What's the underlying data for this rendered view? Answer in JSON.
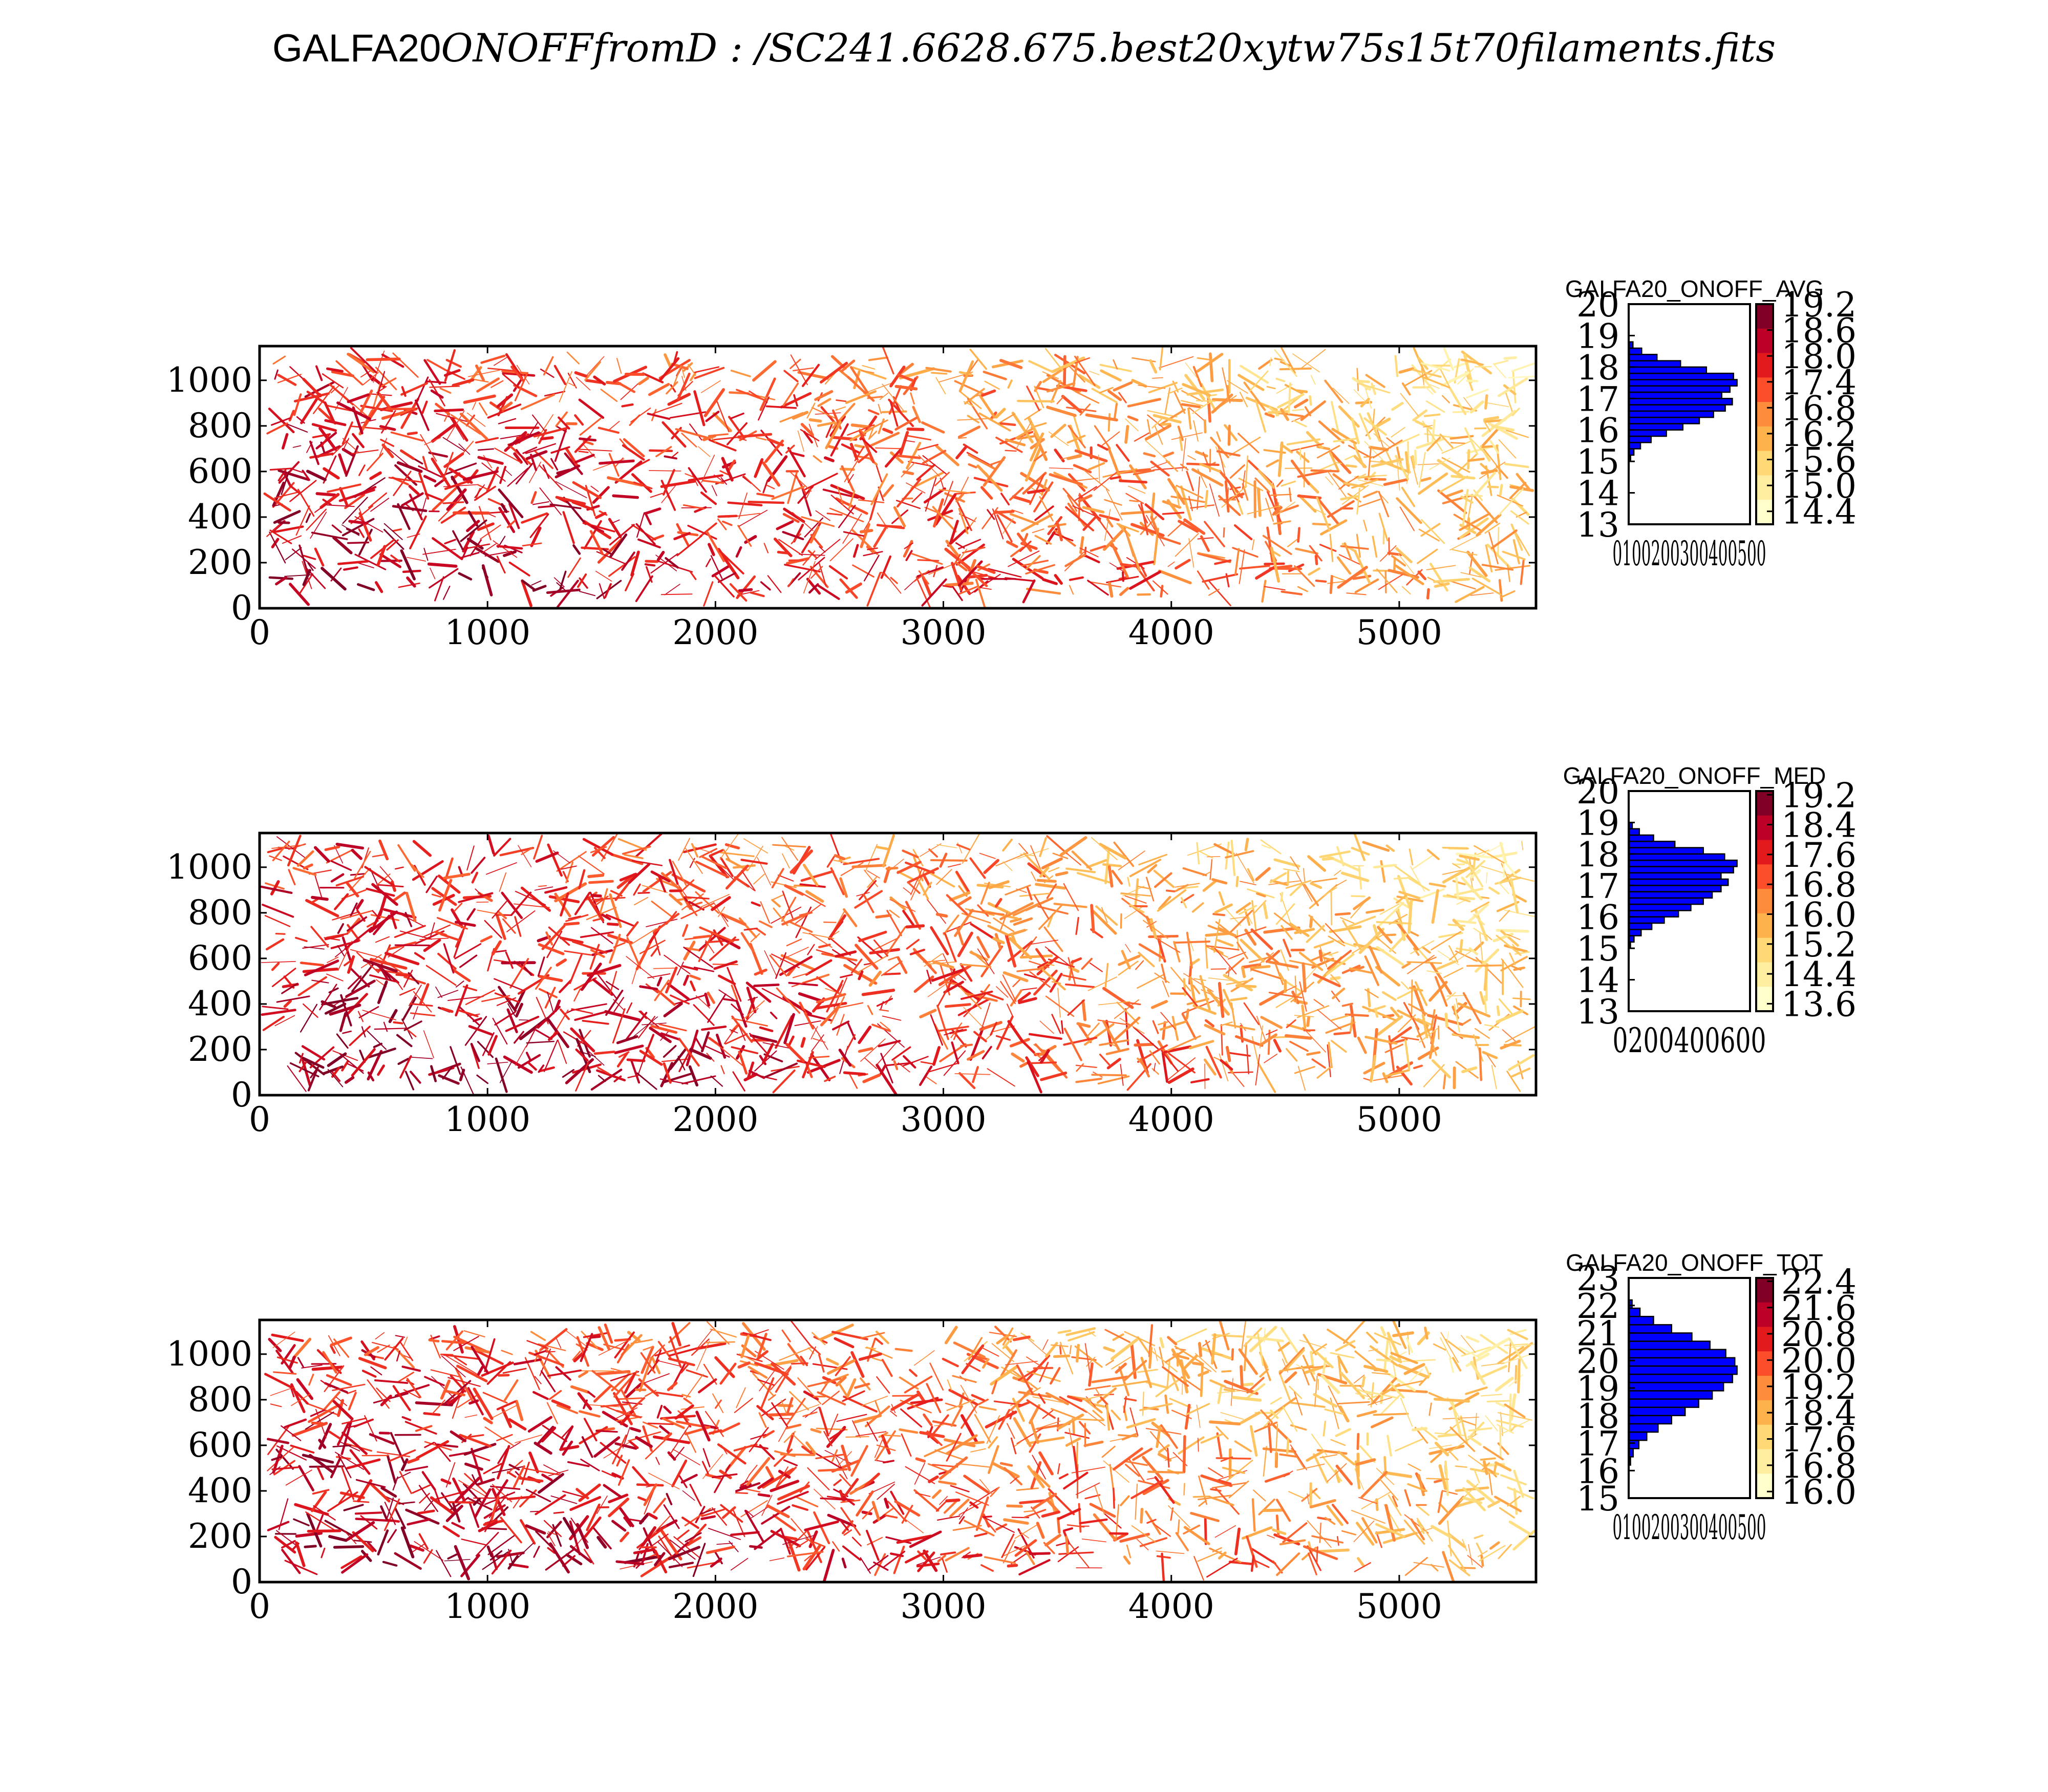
{
  "figure": {
    "title_main": "GALFA20",
    "title_rest": "ONOFFfromD : /SC241.6628.675.best20xytw75s15t70filaments.fits"
  },
  "colormap": [
    "#ffffcc",
    "#ffeda0",
    "#fed976",
    "#feb24c",
    "#fd8d3c",
    "#fc4e2a",
    "#e31a1c",
    "#bd0026",
    "#800026"
  ],
  "hist_fill_color": "#0000ff",
  "chart_data": [
    {
      "type": "heatmap",
      "xlim": [
        0,
        5600
      ],
      "ylim": [
        0,
        1150
      ],
      "x_ticks": [
        "0",
        "1000",
        "2000",
        "3000",
        "4000",
        "5000"
      ],
      "y_ticks": [
        "0",
        "200",
        "400",
        "600",
        "800",
        "1000"
      ],
      "value_range": [
        14.1,
        19.2
      ],
      "colormap": "YlOrRd",
      "hist": {
        "title": "GALFA20_ONOFF_AVG",
        "type": "histogram",
        "orientation": "horizontal",
        "ylim": [
          13,
          20
        ],
        "y_ticks": [
          "13",
          "14",
          "15",
          "16",
          "17",
          "18",
          "19",
          "20"
        ],
        "x_tick_text": "0100200300400500",
        "bins": [
          15.0,
          15.2,
          15.4,
          15.6,
          15.8,
          16.0,
          16.2,
          16.4,
          16.6,
          16.8,
          17.0,
          17.2,
          17.4,
          17.6,
          17.8,
          18.0,
          18.2,
          18.4,
          18.6
        ],
        "counts": [
          8,
          22,
          50,
          95,
          160,
          230,
          300,
          360,
          410,
          440,
          395,
          430,
          460,
          445,
          330,
          220,
          120,
          55,
          18
        ]
      },
      "colorbar": {
        "ticks": [
          "14.4",
          "15.0",
          "15.6",
          "16.2",
          "16.8",
          "17.4",
          "18.0",
          "18.6",
          "19.2"
        ],
        "tick_values": [
          14.4,
          15.0,
          15.6,
          16.2,
          16.8,
          17.4,
          18.0,
          18.6,
          19.2
        ],
        "range": [
          14.1,
          19.2
        ]
      }
    },
    {
      "type": "heatmap",
      "xlim": [
        0,
        5600
      ],
      "ylim": [
        0,
        1150
      ],
      "x_ticks": [
        "0",
        "1000",
        "2000",
        "3000",
        "4000",
        "5000"
      ],
      "y_ticks": [
        "0",
        "200",
        "400",
        "600",
        "800",
        "1000"
      ],
      "value_range": [
        13.4,
        19.3
      ],
      "colormap": "YlOrRd",
      "hist": {
        "title": "GALFA20_ONOFF_MED",
        "type": "histogram",
        "orientation": "horizontal",
        "ylim": [
          13,
          20
        ],
        "y_ticks": [
          "13",
          "14",
          "15",
          "16",
          "17",
          "18",
          "19",
          "20"
        ],
        "x_tick_text": "0200400600",
        "bins": [
          15.0,
          15.2,
          15.4,
          15.6,
          15.8,
          16.0,
          16.2,
          16.4,
          16.6,
          16.8,
          17.0,
          17.2,
          17.4,
          17.6,
          17.8,
          18.0,
          18.2,
          18.4,
          18.6,
          18.8
        ],
        "counts": [
          10,
          30,
          70,
          130,
          200,
          280,
          350,
          420,
          470,
          520,
          560,
          520,
          590,
          610,
          540,
          420,
          260,
          140,
          60,
          20
        ]
      },
      "colorbar": {
        "ticks": [
          "13.6",
          "14.4",
          "15.2",
          "16.0",
          "16.8",
          "17.6",
          "18.4",
          "19.2"
        ],
        "tick_values": [
          13.6,
          14.4,
          15.2,
          16.0,
          16.8,
          17.6,
          18.4,
          19.2
        ],
        "range": [
          13.4,
          19.3
        ]
      }
    },
    {
      "type": "heatmap",
      "xlim": [
        0,
        5600
      ],
      "ylim": [
        0,
        1150
      ],
      "x_ticks": [
        "0",
        "1000",
        "2000",
        "3000",
        "4000",
        "5000"
      ],
      "y_ticks": [
        "0",
        "200",
        "400",
        "600",
        "800",
        "1000"
      ],
      "value_range": [
        15.8,
        22.5
      ],
      "colormap": "YlOrRd",
      "hist": {
        "title": "GALFA20_ONOFF_TOT",
        "type": "histogram",
        "orientation": "horizontal",
        "ylim": [
          15,
          23
        ],
        "y_ticks": [
          "15",
          "16",
          "17",
          "18",
          "19",
          "20",
          "21",
          "22",
          "23"
        ],
        "x_tick_text": "0100200300400500",
        "bins": [
          16.2,
          16.5,
          16.8,
          17.1,
          17.4,
          17.7,
          18.0,
          18.3,
          18.6,
          18.9,
          19.2,
          19.5,
          19.8,
          20.1,
          20.4,
          20.7,
          21.0,
          21.3,
          21.6,
          21.9
        ],
        "counts": [
          8,
          20,
          45,
          80,
          130,
          190,
          250,
          310,
          370,
          420,
          460,
          480,
          470,
          430,
          360,
          280,
          190,
          110,
          50,
          15
        ]
      },
      "colorbar": {
        "ticks": [
          "16.0",
          "16.8",
          "17.6",
          "18.4",
          "19.2",
          "20.0",
          "20.8",
          "21.6",
          "22.4"
        ],
        "tick_values": [
          16.0,
          16.8,
          17.6,
          18.4,
          19.2,
          20.0,
          20.8,
          21.6,
          22.4
        ],
        "range": [
          15.8,
          22.5
        ]
      }
    }
  ]
}
